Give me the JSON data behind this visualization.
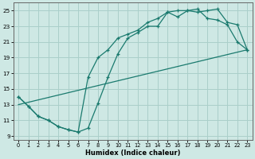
{
  "background_color": "#cee8e4",
  "grid_color": "#aacfca",
  "line_color": "#1a7a6e",
  "xlabel": "Humidex (Indice chaleur)",
  "xlim": [
    -0.5,
    23.5
  ],
  "ylim": [
    8.5,
    26.0
  ],
  "yticks": [
    9,
    11,
    13,
    15,
    17,
    19,
    21,
    23,
    25
  ],
  "xticks": [
    0,
    1,
    2,
    3,
    4,
    5,
    6,
    7,
    8,
    9,
    10,
    11,
    12,
    13,
    14,
    15,
    16,
    17,
    18,
    19,
    20,
    21,
    22,
    23
  ],
  "curve1_x": [
    0,
    1,
    2,
    3,
    4,
    5,
    6,
    7,
    8,
    9,
    10,
    11,
    12,
    13,
    14,
    15,
    16,
    17,
    18,
    19,
    20,
    21,
    22,
    23
  ],
  "curve1_y": [
    14.0,
    12.8,
    11.5,
    11.0,
    10.2,
    9.8,
    9.5,
    10.0,
    13.2,
    16.5,
    19.5,
    21.5,
    22.2,
    23.0,
    23.0,
    24.8,
    24.2,
    25.0,
    24.8,
    25.0,
    25.2,
    23.5,
    23.2,
    20.0
  ],
  "curve2_x": [
    0,
    1,
    2,
    3,
    4,
    5,
    6,
    7,
    8,
    9,
    10,
    11,
    12,
    13,
    14,
    15,
    16,
    17,
    18,
    19,
    20,
    21,
    22,
    23
  ],
  "curve2_y": [
    14.0,
    12.8,
    11.5,
    11.0,
    10.2,
    9.8,
    9.5,
    16.5,
    19.0,
    20.0,
    21.5,
    22.0,
    22.5,
    23.5,
    24.0,
    24.8,
    25.0,
    25.0,
    25.2,
    24.0,
    23.8,
    23.2,
    21.0,
    20.0
  ],
  "line3_x": [
    0,
    23
  ],
  "line3_y": [
    13.0,
    20.0
  ]
}
